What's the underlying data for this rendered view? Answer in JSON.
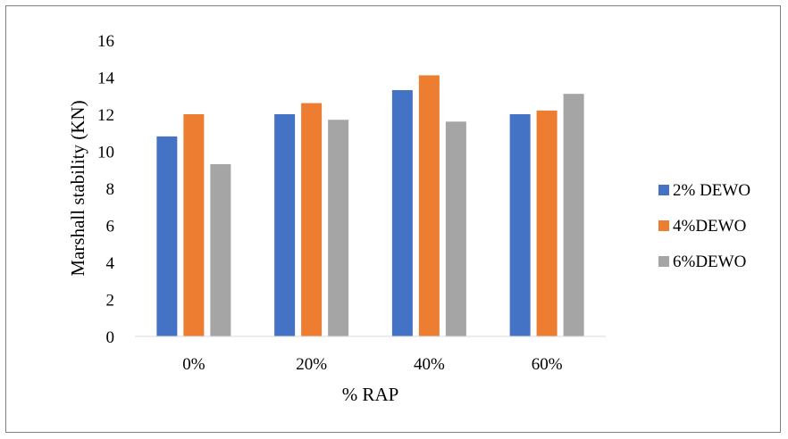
{
  "chart_data": {
    "type": "bar",
    "xlabel": "% RAP",
    "ylabel": "Marshall stability (KN)",
    "categories": [
      "0%",
      "20%",
      "40%",
      "60%"
    ],
    "ylim": [
      0,
      16
    ],
    "yticks": [
      0,
      2,
      4,
      6,
      8,
      10,
      12,
      14,
      16
    ],
    "grid": false,
    "legend_position": "right",
    "series": [
      {
        "name": "2% DEWO",
        "color": "#4472c4",
        "values": [
          10.8,
          12.0,
          13.3,
          12.0
        ]
      },
      {
        "name": "4%DEWO",
        "color": "#ed7d31",
        "values": [
          12.0,
          12.6,
          14.1,
          12.2
        ]
      },
      {
        "name": "6%DEWO",
        "color": "#a5a5a5",
        "values": [
          9.3,
          11.7,
          11.6,
          13.1
        ]
      }
    ]
  }
}
